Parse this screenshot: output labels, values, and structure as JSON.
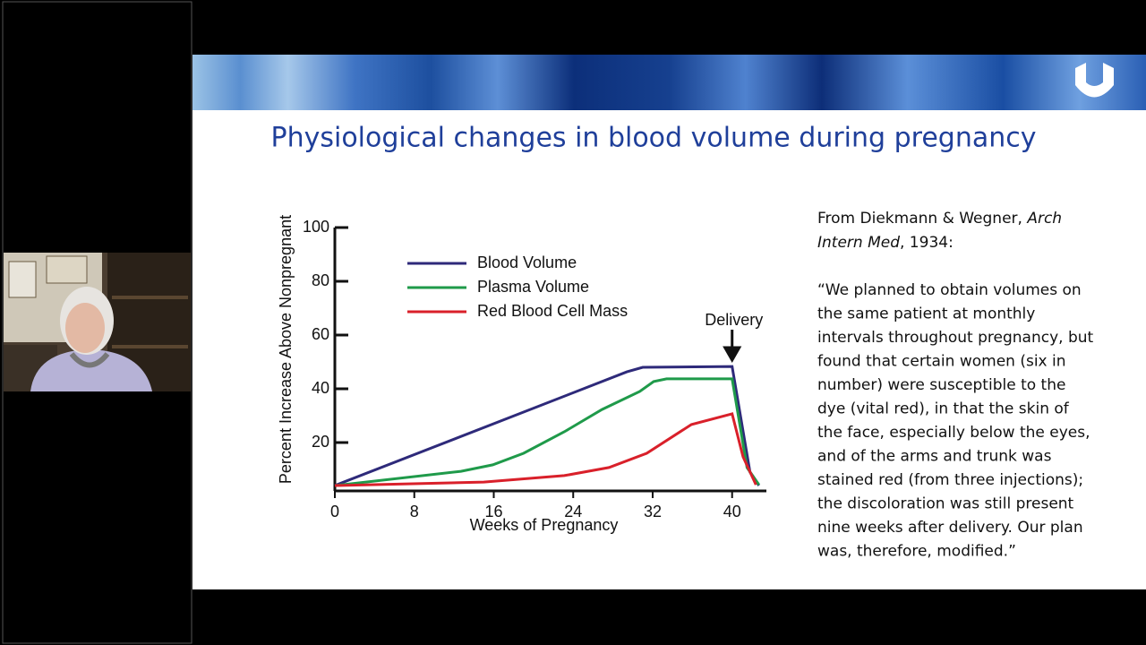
{
  "slide": {
    "title": "Physiological changes in blood volume during pregnancy",
    "citation": {
      "lead": "From Diekmann & Wegner,",
      "journal_line1": "Arch",
      "journal_line2": "Intern Med",
      "tail": ", 1934:"
    },
    "quote_lines": [
      "“We planned to obtain volumes on",
      "the same patient at monthly",
      "intervals throughout pregnancy, but",
      "found that certain women (six in",
      "number) were susceptible to the",
      "dye (vital red), in that the skin of",
      "the face, especially below the eyes,",
      "and of the arms and trunk was",
      "stained red (from three injections);",
      "the discoloration was still present",
      "nine weeks after delivery. Our plan",
      "was, therefore, modified.”"
    ]
  },
  "chart_data": {
    "type": "line",
    "x_label": "Weeks of Pregnancy",
    "y_label": "Percent Increase Above Nonpregnant",
    "annotation": "Delivery",
    "annotation_x": 40,
    "xlim": [
      0,
      43
    ],
    "xticks": [
      0,
      8,
      16,
      24,
      32,
      40
    ],
    "ylim": [
      2,
      100
    ],
    "yticks": [
      20,
      40,
      60,
      80,
      100
    ],
    "series": [
      {
        "name": "Blood Volume",
        "color": "#2e2a7a",
        "x": [
          0,
          29.4,
          31,
          40,
          41.8,
          42.7
        ],
        "values": [
          4,
          46.3,
          48,
          48.3,
          9,
          4
        ]
      },
      {
        "name": "Plasma Volume",
        "color": "#1f9a4a",
        "x": [
          0,
          12.7,
          15.9,
          19,
          23.1,
          26.9,
          30.7,
          32.1,
          33.4,
          40,
          41.5,
          42.7
        ],
        "values": [
          4,
          9.3,
          11.7,
          16,
          24,
          32.3,
          39,
          42.7,
          43.7,
          43.7,
          10.7,
          4.3
        ]
      },
      {
        "name": "Red Blood Cell Mass",
        "color": "#d9202a",
        "x": [
          0,
          15,
          23.1,
          27.6,
          31.4,
          35.9,
          40,
          41.1,
          42.4
        ],
        "values": [
          4,
          5.3,
          7.7,
          10.7,
          16,
          26.7,
          30.7,
          14.7,
          4.3
        ]
      }
    ]
  }
}
